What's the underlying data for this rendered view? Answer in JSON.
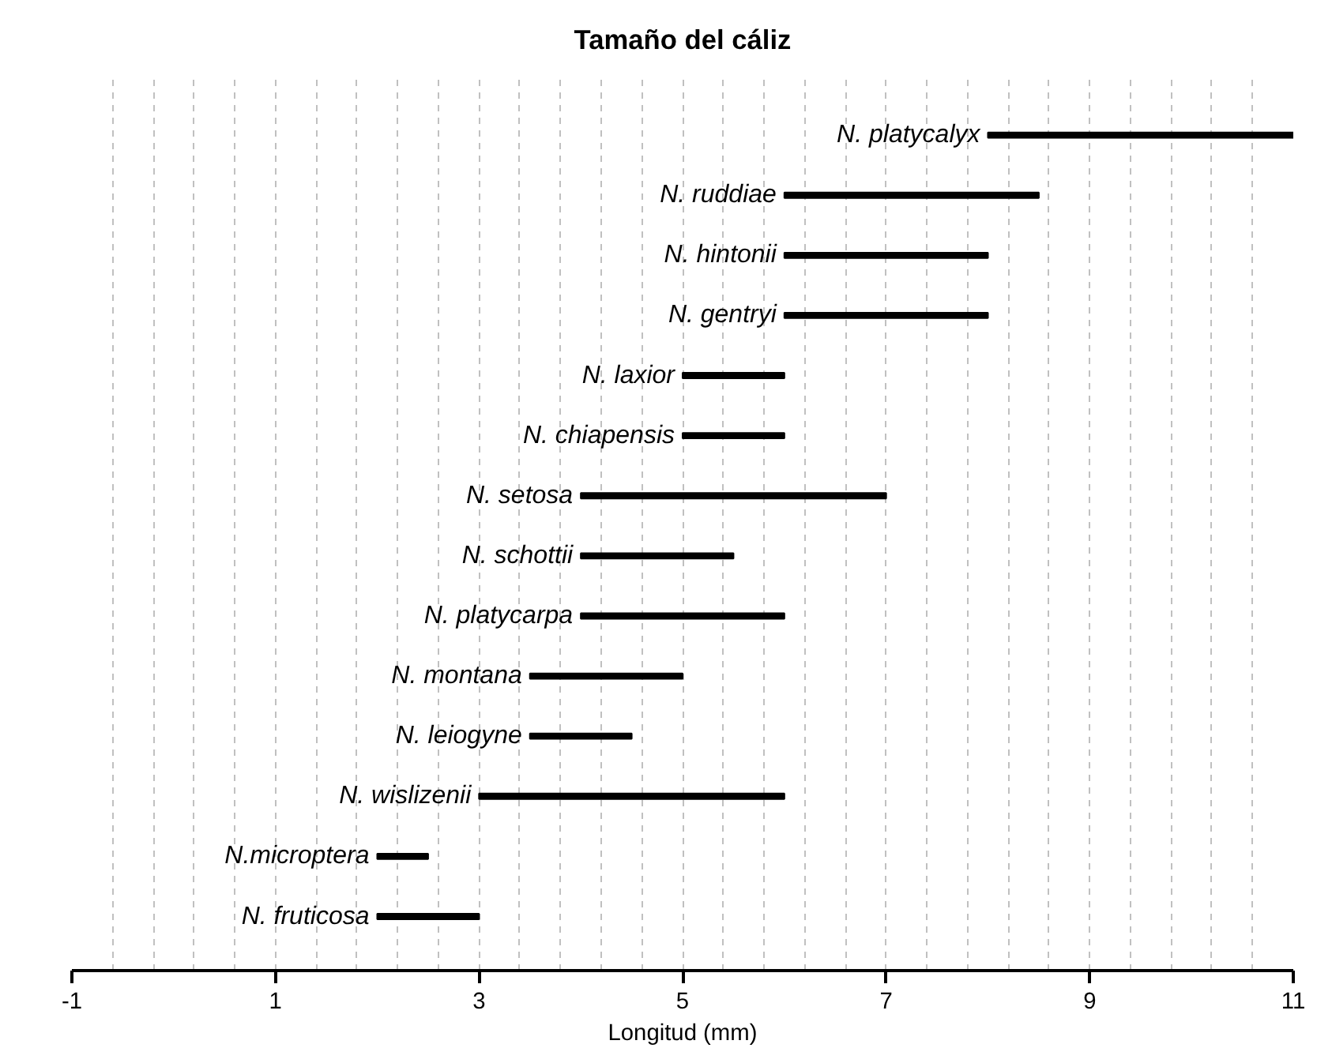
{
  "chart_data": {
    "type": "bar",
    "orientation": "horizontal",
    "title": "Tamaño del cáliz",
    "xlabel": "Longitud (mm)",
    "categories": [
      "N. platycalyx",
      "N. ruddiae",
      "N. hintonii",
      "N. gentryi",
      "N. laxior",
      "N. chiapensis",
      "N. setosa",
      "N. schottii",
      "N. platycarpa",
      "N. montana",
      "N. leiogyne",
      "N. wislizenii",
      "N.microptera",
      "N. fruticosa"
    ],
    "base": [
      8,
      6,
      6,
      6,
      5,
      5,
      4,
      4,
      4,
      3.5,
      3.5,
      3,
      2,
      2
    ],
    "values": [
      3,
      2.5,
      2,
      2,
      1,
      1,
      3,
      1.5,
      2,
      1.5,
      1,
      3,
      0.5,
      1
    ],
    "color": "#000000",
    "xlim": [
      -1,
      11
    ],
    "xticks": [
      -1,
      {
        "value": -0.6,
        "label": null
      },
      {
        "value": -0.2,
        "label": null
      },
      {
        "value": 0.2,
        "label": null
      },
      {
        "value": 0.6,
        "label": null
      },
      1,
      {
        "value": 1.4,
        "label": null
      },
      {
        "value": 1.8,
        "label": null
      },
      {
        "value": 2.2,
        "label": null
      },
      {
        "value": 2.6,
        "label": null
      },
      3,
      {
        "value": 3.4,
        "label": null
      },
      {
        "value": 3.8,
        "label": null
      },
      {
        "value": 4.2,
        "label": null
      },
      {
        "value": 4.6,
        "label": null
      },
      5,
      {
        "value": 5.4,
        "label": null
      },
      {
        "value": 5.8,
        "label": null
      },
      {
        "value": 6.2,
        "label": null
      },
      {
        "value": 6.6,
        "label": null
      },
      7,
      {
        "value": 7.4,
        "label": null
      },
      {
        "value": 7.8,
        "label": null
      },
      {
        "value": 8.2,
        "label": null
      },
      {
        "value": 8.6,
        "label": null
      },
      9,
      {
        "value": 9.4,
        "label": null
      },
      {
        "value": 9.8,
        "label": null
      },
      {
        "value": 10.2,
        "label": null
      },
      {
        "value": 10.6,
        "label": null
      },
      11
    ],
    "grid": "x",
    "tick_labels": "x"
  }
}
